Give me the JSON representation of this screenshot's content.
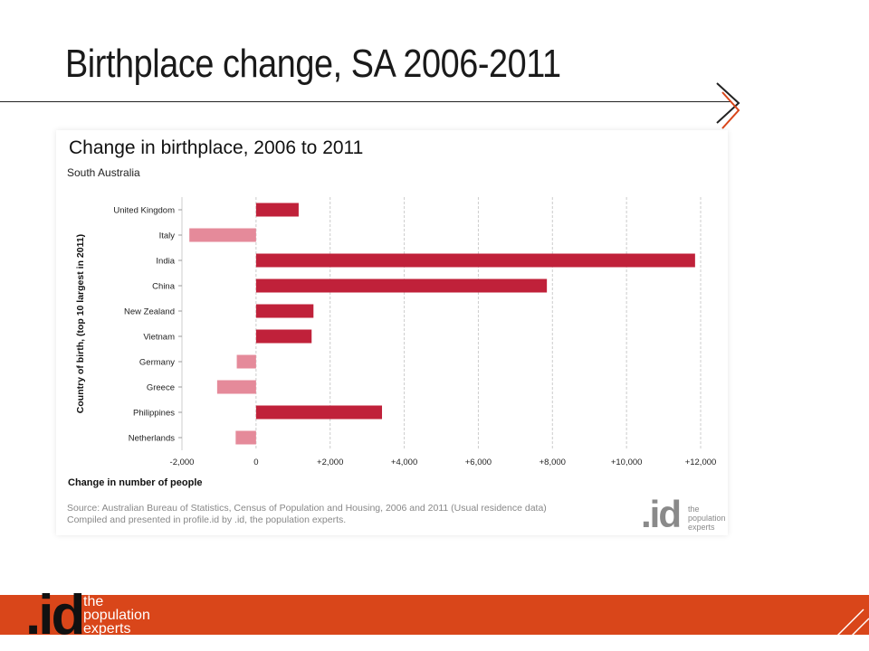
{
  "slide": {
    "title": "Birthplace change, SA 2006-2011"
  },
  "colors": {
    "positive": "#c0213a",
    "negative": "#e58a9a",
    "brand_orange": "#d9461a",
    "grid": "#cccccc"
  },
  "chart_data": {
    "type": "bar",
    "orientation": "horizontal",
    "title": "Change in birthplace, 2006 to 2011",
    "subtitle": "South Australia",
    "xlabel": "Change in number of people",
    "ylabel": "Country of birth, (top 10 largest in 2011)",
    "categories": [
      "United Kingdom",
      "Italy",
      "India",
      "China",
      "New Zealand",
      "Vietnam",
      "Germany",
      "Greece",
      "Philippines",
      "Netherlands"
    ],
    "values": [
      1150,
      -1800,
      11850,
      7850,
      1550,
      1500,
      -520,
      -1050,
      3400,
      -550
    ],
    "xlim": [
      -2000,
      12000
    ],
    "xticks": [
      -2000,
      0,
      2000,
      4000,
      6000,
      8000,
      10000,
      12000
    ],
    "xtick_labels": [
      "-2,000",
      "0",
      "+2,000",
      "+4,000",
      "+6,000",
      "+8,000",
      "+10,000",
      "+12,000"
    ],
    "grid": true,
    "legend": "none"
  },
  "source": {
    "line1": "Source: Australian Bureau of Statistics, Census of Population and Housing, 2006 and 2011 (Usual residence data)",
    "line2": "Compiled and presented in profile.id by .id, the population experts."
  },
  "logo": {
    "mark": ".id",
    "tag1": "the",
    "tag2": "population",
    "tag3": "experts"
  }
}
